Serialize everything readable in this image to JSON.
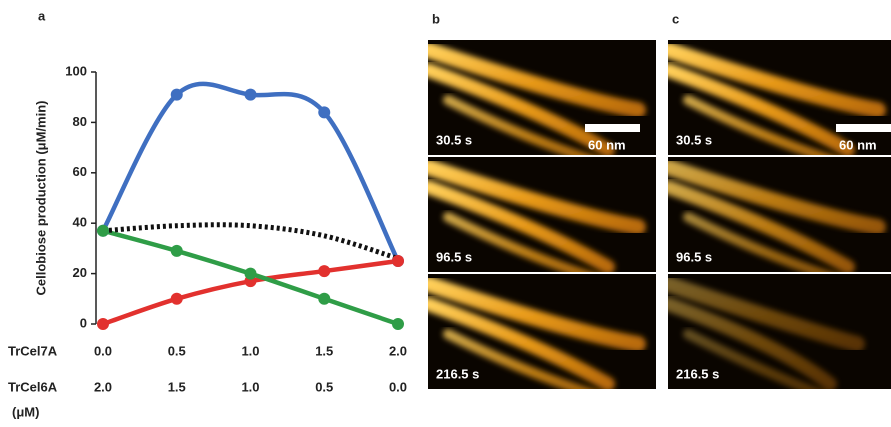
{
  "chart_data": {
    "type": "line",
    "panel_label": "a",
    "ylabel": "Cellobiose production (μM/min)",
    "x": [
      0,
      0.5,
      1,
      1.5,
      2
    ],
    "xlim": [
      0,
      2
    ],
    "xticks": [
      {
        "value": 0,
        "label": "0.0"
      },
      {
        "value": 0.5,
        "label": "0.5"
      },
      {
        "value": 1,
        "label": "1.0"
      },
      {
        "value": 1.5,
        "label": "1.5"
      },
      {
        "value": 2,
        "label": "2.0"
      }
    ],
    "xlabel": "TrCel7A",
    "x2lim": [
      2,
      0
    ],
    "x2ticks": [
      {
        "value": 2,
        "label": "2.0"
      },
      {
        "value": 1.5,
        "label": "1.5"
      },
      {
        "value": 1,
        "label": "1.0"
      },
      {
        "value": 0.5,
        "label": "0.5"
      },
      {
        "value": 0,
        "label": "0.0"
      }
    ],
    "x2label": "TrCel6A",
    "x_unit": "(μM)",
    "ylim": [
      0,
      100
    ],
    "yticks": [
      0,
      20,
      40,
      60,
      80,
      100
    ],
    "series": [
      {
        "color": "#3f6fc1",
        "values": [
          37,
          91,
          91,
          84,
          25
        ],
        "markers": true
      },
      {
        "color": "#e2312e",
        "values": [
          0,
          10,
          17,
          21,
          25
        ],
        "markers": true
      },
      {
        "color": "#2f9d47",
        "values": [
          37,
          29,
          20,
          10,
          0
        ],
        "markers": true
      },
      {
        "color": "#111111",
        "values": [
          37,
          39,
          39,
          35,
          26
        ],
        "markers": false,
        "dash": "dotted"
      }
    ]
  },
  "panels": [
    {
      "letter": "b",
      "frames": [
        "30.5 s",
        "96.5 s",
        "216.5 s"
      ],
      "scale_bar": "60 nm"
    },
    {
      "letter": "c",
      "frames": [
        "30.5 s",
        "96.5 s",
        "216.5 s"
      ],
      "scale_bar": "60 nm"
    }
  ]
}
